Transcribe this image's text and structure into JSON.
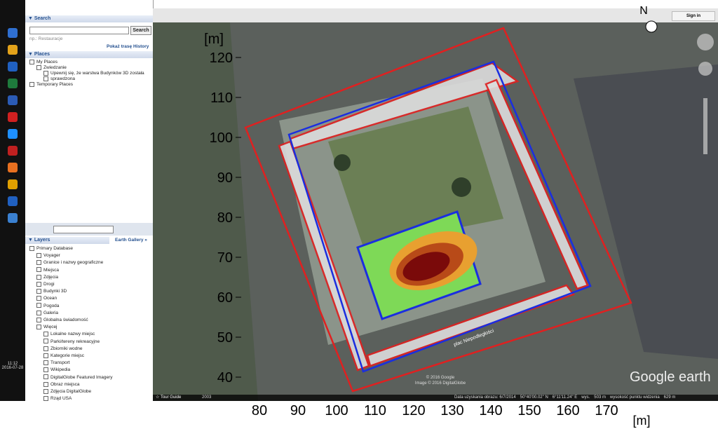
{
  "taskbar": {
    "time": "11:12",
    "date": "2016-07-28"
  },
  "search": {
    "title": "Search",
    "button": "Search",
    "placeholder": "np.: Restauracje",
    "links": [
      "Pokaż trasę",
      "History"
    ]
  },
  "places": {
    "title": "Places",
    "items": [
      {
        "label": "My Places",
        "level": 0
      },
      {
        "label": "Zwiedzanie",
        "level": 1
      },
      {
        "label": "Upewnij się, że warstwa Budynków 3D została",
        "level": 2
      },
      {
        "label": "sprawdzona",
        "level": 2
      },
      {
        "label": "Temporary Places",
        "level": 0
      }
    ]
  },
  "earth_gallery": "Earth Gallery »",
  "layers": {
    "title": "Layers",
    "items": [
      {
        "label": "Primary Database",
        "level": 0
      },
      {
        "label": "Voyager",
        "level": 1
      },
      {
        "label": "Granice i nazwy geograficzne",
        "level": 1
      },
      {
        "label": "Miejsca",
        "level": 1
      },
      {
        "label": "Zdjęcia",
        "level": 1
      },
      {
        "label": "Drogi",
        "level": 1
      },
      {
        "label": "Budynki 3D",
        "level": 1
      },
      {
        "label": "Ocean",
        "level": 1
      },
      {
        "label": "Pogoda",
        "level": 1
      },
      {
        "label": "Galeria",
        "level": 1
      },
      {
        "label": "Globalna świadomość",
        "level": 1
      },
      {
        "label": "Więcej",
        "level": 1
      },
      {
        "label": "Lokalne nazwy miejsc",
        "level": 2
      },
      {
        "label": "Parki/tereny rekreacyjne",
        "level": 2
      },
      {
        "label": "Zbiorniki wodne",
        "level": 2
      },
      {
        "label": "Kategorie miejsc",
        "level": 2
      },
      {
        "label": "Transport",
        "level": 2
      },
      {
        "label": "Wikipedia",
        "level": 2
      },
      {
        "label": "DigitalGlobe Featured Imagery",
        "level": 2
      },
      {
        "label": "Obraz miejsca",
        "level": 2
      },
      {
        "label": "Zdjęcia DigitalGlobe",
        "level": 2
      },
      {
        "label": "Rząd USA",
        "level": 2
      }
    ]
  },
  "map": {
    "sign_in": "Sign in",
    "north": "N",
    "street": "plac Niepodległości",
    "copyright": [
      "© 2016 Google",
      "Image © 2016 DigitalGlobe"
    ],
    "logo": "Google earth",
    "tour_guide": "Tour Guide",
    "year": "2003",
    "status": [
      "Data uzyskania obrazu: 6/7/2014",
      "50°40'00.02\" N",
      "6°11'11.24\" E",
      "wys.",
      "503 m",
      "wysokość punktu widzenia",
      "629 m"
    ]
  },
  "plot": {
    "y_unit": "[m]",
    "x_unit": "[m]",
    "yticks": [
      40,
      50,
      60,
      70,
      80,
      90,
      100,
      110,
      120
    ],
    "xticks": [
      80,
      90,
      100,
      110,
      120,
      130,
      140,
      150,
      160,
      170
    ]
  }
}
